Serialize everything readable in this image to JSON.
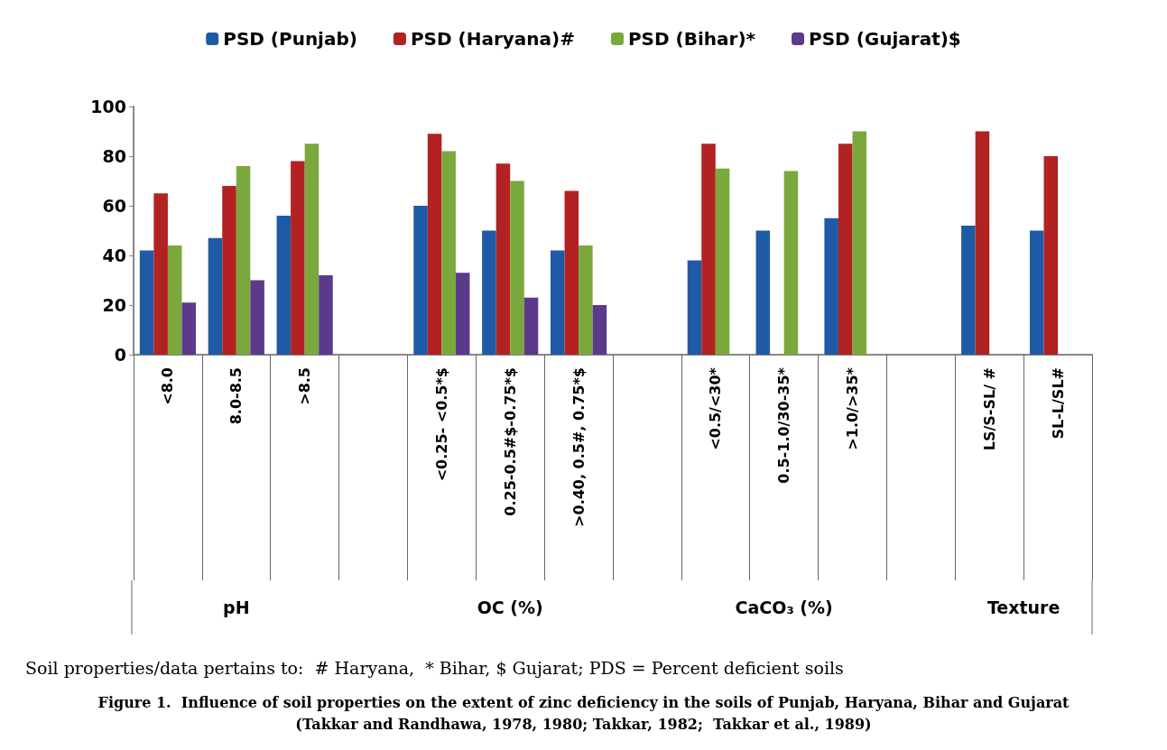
{
  "chart_data": {
    "type": "bar",
    "categories": [
      "<8.0",
      "8.0-8.5",
      ">8.5",
      null,
      "<0.25- <0.5*$",
      "0.25-0.5#$-0.75*$",
      ">0.40, 0.5#, 0.75*$",
      null,
      "<0.5/<30*",
      "0.5-1.0/30-35*",
      ">1.0/>35*",
      null,
      "LS/S-SL/ #",
      "SL-L/SL#"
    ],
    "series": [
      {
        "name": "PSD (Punjab)",
        "color": "#1f5aa6",
        "values": [
          42,
          47,
          56,
          null,
          60,
          50,
          42,
          null,
          38,
          50,
          55,
          null,
          52,
          50
        ]
      },
      {
        "name": "PSD (Haryana)#",
        "color": "#b22222",
        "values": [
          65,
          68,
          78,
          null,
          89,
          77,
          66,
          null,
          85,
          null,
          85,
          null,
          90,
          80
        ]
      },
      {
        "name": "PSD (Bihar)*",
        "color": "#7aa83c",
        "values": [
          44,
          76,
          85,
          null,
          82,
          70,
          44,
          null,
          75,
          74,
          90,
          null,
          null,
          null
        ]
      },
      {
        "name": "PSD (Gujarat)$",
        "color": "#5b3a8c",
        "values": [
          21,
          30,
          32,
          null,
          33,
          23,
          20,
          null,
          null,
          null,
          null,
          null,
          null,
          null
        ]
      }
    ],
    "ylim": [
      0,
      100
    ],
    "yticks": [
      0,
      20,
      40,
      60,
      80,
      100
    ],
    "legend": "top",
    "annotations": [
      "pH",
      "OC (%)",
      "CaCO₃ (%)",
      "Texture",
      "Soil properties/data pertains to:  # Haryana,  * Bihar, $ Gujarat; PDS = Percent deficient soils",
      "Figure 1.  Influence of soil properties on the extent of zinc deficiency in the soils of Punjab, Haryana, Bihar and Gujarat\n(Takkar and Randhawa, 1978, 1980; Takkar, 1982;  Takkar et al., 1989)"
    ]
  }
}
